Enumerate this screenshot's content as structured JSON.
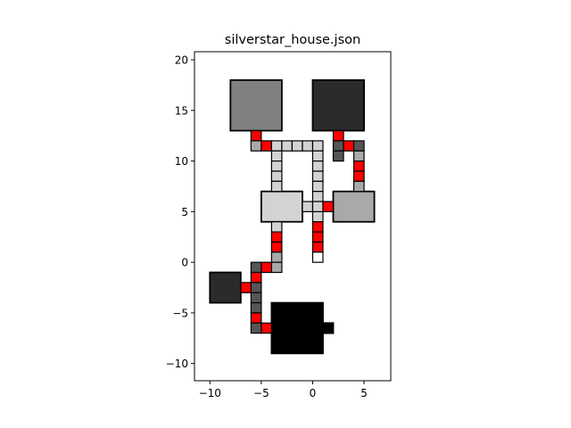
{
  "chart_data": {
    "type": "floorplan",
    "title": "silverstar_house.json",
    "xlabel": "",
    "ylabel": "",
    "xlim": [
      -11.5,
      7.6
    ],
    "ylim": [
      -11.7,
      20.8
    ],
    "xticks": [
      -10,
      -5,
      0,
      5
    ],
    "yticks": [
      -10,
      -5,
      0,
      5,
      10,
      15,
      20
    ],
    "grid": false,
    "colors": {
      "red": "#ff0000",
      "white": "#ffffff",
      "light": "#d3d3d3",
      "mid": "#a9a9a9",
      "gray": "#808080",
      "darkgray": "#555555",
      "dark": "#2b2b2b",
      "black": "#000000"
    },
    "rooms": [
      {
        "x0": -8,
        "y0": 13,
        "x1": -3,
        "y1": 18,
        "color": "gray"
      },
      {
        "x0": 0,
        "y0": 13,
        "x1": 5,
        "y1": 18,
        "color": "dark"
      },
      {
        "x0": -5,
        "y0": 4,
        "x1": -1,
        "y1": 7,
        "color": "light"
      },
      {
        "x0": 2,
        "y0": 4,
        "x1": 6,
        "y1": 7,
        "color": "mid"
      },
      {
        "x0": -10,
        "y0": -4,
        "x1": -7,
        "y1": -1,
        "color": "dark"
      },
      {
        "x0": -4,
        "y0": -9,
        "x1": 1,
        "y1": -4,
        "color": "black"
      },
      {
        "x0": 1,
        "y0": -7,
        "x1": 2,
        "y1": -6,
        "color": "black"
      }
    ],
    "cells": [
      {
        "x": -6,
        "y": 12,
        "color": "red"
      },
      {
        "x": -6,
        "y": 11,
        "color": "mid"
      },
      {
        "x": -5,
        "y": 11,
        "color": "red"
      },
      {
        "x": -4,
        "y": 11,
        "color": "light"
      },
      {
        "x": -3,
        "y": 11,
        "color": "light"
      },
      {
        "x": -2,
        "y": 11,
        "color": "light"
      },
      {
        "x": -1,
        "y": 11,
        "color": "light"
      },
      {
        "x": 0,
        "y": 11,
        "color": "light"
      },
      {
        "x": 0,
        "y": 10,
        "color": "light"
      },
      {
        "x": 0,
        "y": 9,
        "color": "light"
      },
      {
        "x": 0,
        "y": 8,
        "color": "light"
      },
      {
        "x": 0,
        "y": 7,
        "color": "light"
      },
      {
        "x": 0,
        "y": 6,
        "color": "light"
      },
      {
        "x": 0,
        "y": 4,
        "color": "light"
      },
      {
        "x": -4,
        "y": 10,
        "color": "light"
      },
      {
        "x": -4,
        "y": 9,
        "color": "light"
      },
      {
        "x": -4,
        "y": 8,
        "color": "light"
      },
      {
        "x": -4,
        "y": 7,
        "color": "light"
      },
      {
        "x": -1,
        "y": 5,
        "color": "light"
      },
      {
        "x": 0,
        "y": 5,
        "color": "light"
      },
      {
        "x": 1,
        "y": 5,
        "color": "red"
      },
      {
        "x": 2,
        "y": 12,
        "color": "red"
      },
      {
        "x": 2,
        "y": 11,
        "color": "darkgray"
      },
      {
        "x": 2,
        "y": 10,
        "color": "darkgray"
      },
      {
        "x": 3,
        "y": 11,
        "color": "red"
      },
      {
        "x": 4,
        "y": 11,
        "color": "darkgray"
      },
      {
        "x": 4,
        "y": 10,
        "color": "mid"
      },
      {
        "x": 4,
        "y": 9,
        "color": "red"
      },
      {
        "x": 4,
        "y": 8,
        "color": "red"
      },
      {
        "x": 4,
        "y": 7,
        "color": "mid"
      },
      {
        "x": -4,
        "y": 3,
        "color": "light"
      },
      {
        "x": -4,
        "y": 2,
        "color": "red"
      },
      {
        "x": -4,
        "y": 1,
        "color": "red"
      },
      {
        "x": -4,
        "y": 0,
        "color": "mid"
      },
      {
        "x": -4,
        "y": -1,
        "color": "mid"
      },
      {
        "x": -5,
        "y": -1,
        "color": "red"
      },
      {
        "x": -6,
        "y": -1,
        "color": "darkgray"
      },
      {
        "x": -6,
        "y": -2,
        "color": "red"
      },
      {
        "x": -6,
        "y": -3,
        "color": "darkgray"
      },
      {
        "x": -6,
        "y": -4,
        "color": "darkgray"
      },
      {
        "x": -6,
        "y": -5,
        "color": "darkgray"
      },
      {
        "x": -6,
        "y": -6,
        "color": "red"
      },
      {
        "x": -6,
        "y": -7,
        "color": "darkgray"
      },
      {
        "x": -5,
        "y": -7,
        "color": "red"
      },
      {
        "x": -7,
        "y": -3,
        "color": "red"
      },
      {
        "x": 0,
        "y": 3,
        "color": "red"
      },
      {
        "x": 0,
        "y": 2,
        "color": "red"
      },
      {
        "x": 0,
        "y": 1,
        "color": "red"
      },
      {
        "x": 0,
        "y": 0,
        "color": "white"
      }
    ]
  }
}
